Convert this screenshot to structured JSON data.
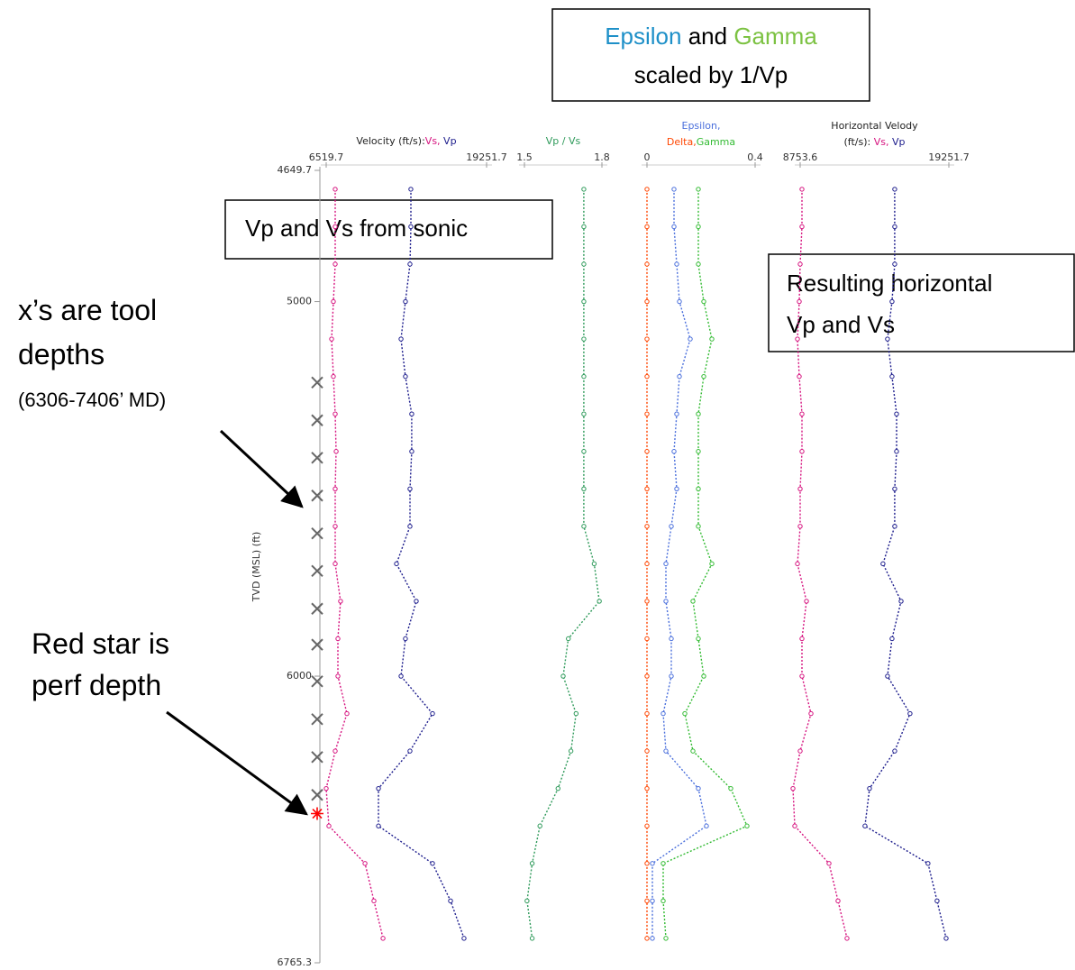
{
  "annotations": [
    {
      "lines": [
        [
          {
            "text": "Epsilon",
            "color": "#1e90c8"
          },
          {
            "text": " and ",
            "color": "#000000"
          },
          {
            "text": "Gamma",
            "color": "#7cc242"
          }
        ],
        [
          {
            "text": "scaled by 1/Vp",
            "color": "#000000"
          }
        ]
      ]
    },
    {
      "lines": [
        [
          {
            "text": "Vp and Vs from sonic",
            "color": "#000000"
          }
        ]
      ]
    },
    {
      "lines": [
        [
          {
            "text": "Resulting horizontal",
            "color": "#000000"
          }
        ],
        [
          {
            "text": "Vp and Vs",
            "color": "#000000"
          }
        ]
      ]
    },
    {
      "lines": [
        [
          {
            "text": "x’s are tool",
            "color": "#000000"
          }
        ],
        [
          {
            "text": "depths",
            "color": "#000000"
          }
        ],
        [
          {
            "text": "(6306-7406’ MD)",
            "color": "#000000"
          }
        ]
      ]
    },
    {
      "lines": [
        [
          {
            "text": "Red star is",
            "color": "#000000"
          }
        ],
        [
          {
            "text": "perf depth",
            "color": "#000000"
          }
        ]
      ]
    }
  ],
  "chart_data": [
    {
      "type": "line",
      "ylabel": "TVD (MSL) (ft)",
      "ylim": [
        4649.7,
        6765.3
      ],
      "yticks": [
        4649.7,
        5000,
        6000,
        6765.3
      ],
      "y": [
        4700,
        4800,
        4900,
        5000,
        5100,
        5200,
        5300,
        5400,
        5500,
        5600,
        5700,
        5800,
        5900,
        6000,
        6100,
        6200,
        6300,
        6400,
        6500,
        6600,
        6700
      ],
      "tool_depths": [
        5216,
        5317,
        5417,
        5518,
        5619,
        5719,
        5820,
        5916,
        6014,
        6115,
        6216,
        6317
      ],
      "perf_depth": 6367,
      "xlabel": [
        [
          {
            "text": "Velocity (ft/s):",
            "color": "#222222"
          },
          {
            "text": "Vs, ",
            "color": "#d6137f"
          },
          {
            "text": "Vp",
            "color": "#1c1c8c"
          }
        ]
      ],
      "xlim": [
        6519.7,
        19251.7
      ],
      "xticks": [
        6519.7,
        19251.7
      ],
      "series": [
        {
          "color": "#d6137f",
          "values": [
            7235,
            7235,
            7235,
            7090,
            6950,
            7090,
            7235,
            7310,
            7235,
            7235,
            7235,
            7660,
            7450,
            7450,
            8165,
            7235,
            6520,
            6735,
            9600,
            10310,
            11030
          ]
        },
        {
          "color": "#1c1c8c",
          "values": [
            13240,
            13240,
            13170,
            12810,
            12460,
            12810,
            13310,
            13310,
            13170,
            13170,
            12100,
            13670,
            12810,
            12460,
            14960,
            13170,
            10670,
            10670,
            14960,
            16390,
            17460
          ]
        }
      ]
    },
    {
      "type": "line",
      "xlabel": [
        [
          {
            "text": "Vp / Vs",
            "color": "#2e9a5a"
          }
        ]
      ],
      "xlim": [
        1.5,
        1.8
      ],
      "xticks": [
        1.5,
        1.8
      ],
      "series": [
        {
          "color": "#2e9a5a",
          "values": [
            1.73,
            1.73,
            1.73,
            1.73,
            1.73,
            1.73,
            1.73,
            1.73,
            1.73,
            1.73,
            1.77,
            1.79,
            1.67,
            1.65,
            1.7,
            1.68,
            1.63,
            1.56,
            1.53,
            1.51,
            1.53
          ]
        }
      ]
    },
    {
      "type": "line",
      "xlabel": [
        [
          {
            "text": "Epsilon,",
            "color": "#4a6fdc"
          }
        ],
        [
          {
            "text": "Delta,",
            "color": "#ff4500"
          },
          {
            "text": "Gamma",
            "color": "#33bb33"
          }
        ]
      ],
      "xlim": [
        0,
        0.4
      ],
      "xticks": [
        0,
        0.4
      ],
      "series": [
        {
          "color": "#4a6fdc",
          "values": [
            0.1,
            0.1,
            0.11,
            0.12,
            0.16,
            0.12,
            0.11,
            0.1,
            0.11,
            0.09,
            0.07,
            0.07,
            0.09,
            0.09,
            0.06,
            0.07,
            0.19,
            0.22,
            0.02,
            0.02,
            0.02
          ]
        },
        {
          "color": "#ff4500",
          "values": [
            0,
            0,
            0,
            0,
            0,
            0,
            0,
            0,
            0,
            0,
            0,
            0,
            0,
            0,
            0,
            0,
            0,
            0,
            0,
            0,
            0
          ]
        },
        {
          "color": "#33bb33",
          "values": [
            0.19,
            0.19,
            0.19,
            0.21,
            0.24,
            0.21,
            0.19,
            0.19,
            0.19,
            0.19,
            0.24,
            0.17,
            0.19,
            0.21,
            0.14,
            0.17,
            0.31,
            0.37,
            0.06,
            0.06,
            0.07
          ]
        }
      ]
    },
    {
      "type": "line",
      "xlabel": [
        [
          {
            "text": "Horizontal Velody",
            "color": "#222222"
          }
        ],
        [
          {
            "text": "(ft/s): ",
            "color": "#222222"
          },
          {
            "text": "Vs, ",
            "color": "#d6137f"
          },
          {
            "text": "Vp",
            "color": "#1c1c8c"
          }
        ]
      ],
      "xlim": [
        8753.6,
        19251.7
      ],
      "xticks": [
        8753.6,
        19251.7
      ],
      "series": [
        {
          "color": "#d6137f",
          "values": [
            8880,
            8880,
            8754,
            8690,
            8563,
            8690,
            8880,
            8880,
            8754,
            8754,
            8563,
            9200,
            8880,
            8880,
            9517,
            8754,
            8245,
            8372,
            10790,
            11425,
            12060
          ]
        },
        {
          "color": "#1c1c8c",
          "values": [
            15430,
            15430,
            15430,
            15240,
            14920,
            15240,
            15560,
            15560,
            15430,
            15430,
            14600,
            15880,
            15240,
            14920,
            16510,
            15430,
            13650,
            13330,
            17780,
            18420,
            19060
          ]
        }
      ]
    }
  ]
}
